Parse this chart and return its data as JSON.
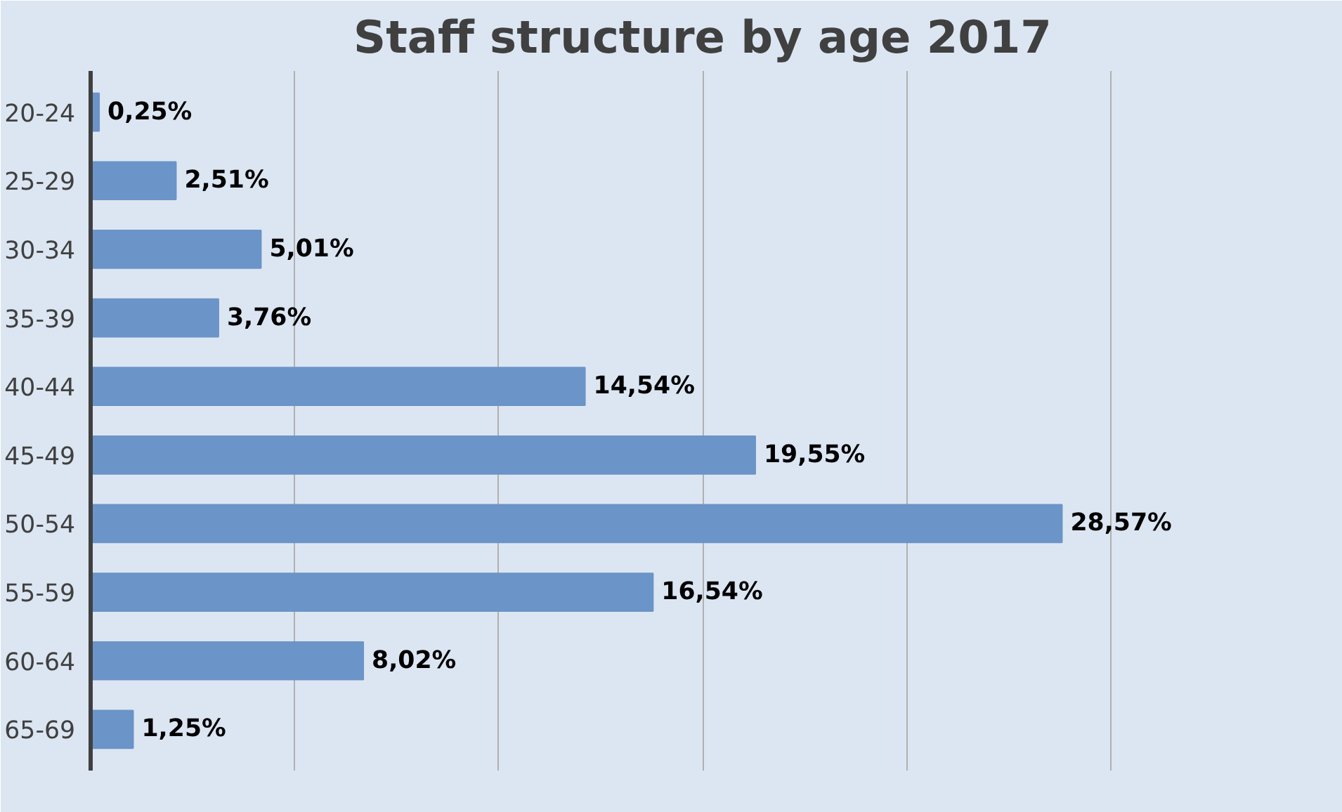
{
  "chart_data": {
    "type": "bar",
    "orientation": "horizontal",
    "title": "Staff structure by age 2017",
    "categories": [
      "20-24",
      "25-29",
      "30-34",
      "35-39",
      "40-44",
      "45-49",
      "50-54",
      "55-59",
      "60-64",
      "65-69"
    ],
    "values": [
      0.25,
      2.51,
      5.01,
      3.76,
      14.54,
      19.55,
      28.57,
      16.54,
      8.02,
      1.25
    ],
    "value_labels": [
      "0,25%",
      "2,51%",
      "5,01%",
      "3,76%",
      "14,54%",
      "19,55%",
      "28,57%",
      "16,54%",
      "8,02%",
      "1,25%"
    ],
    "color": "#6b94c8",
    "xlim": [
      0,
      36
    ],
    "xticks": [
      {
        "value": 0,
        "label": null
      },
      {
        "value": 6,
        "label": null
      },
      {
        "value": 12,
        "label": null
      },
      {
        "value": 18,
        "label": null
      },
      {
        "value": 24,
        "label": null
      },
      {
        "value": 30,
        "label": null
      },
      {
        "value": 36,
        "label": null
      }
    ],
    "tick_labels": "y",
    "grid": "x"
  }
}
